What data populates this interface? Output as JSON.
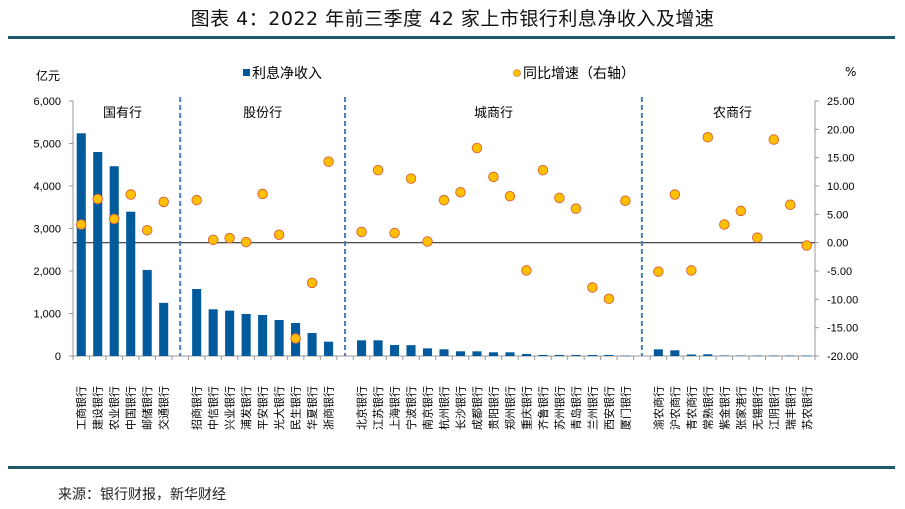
{
  "title": "图表 4：2022 年前三季度 42 家上市银行利息净收入及增速",
  "source": "来源：银行财报，新华财经",
  "chart_data": {
    "type": "bar",
    "title": "图表 4：2022 年前三季度 42 家上市银行利息净收入及增速",
    "left_unit": "亿元",
    "right_unit": "%",
    "ylim_left": [
      0,
      6000
    ],
    "ylim_right": [
      -20,
      25
    ],
    "left_ticks": [
      "0",
      "1,000",
      "2,000",
      "3,000",
      "4,000",
      "5,000",
      "6,000"
    ],
    "left_tick_values": [
      0,
      1000,
      2000,
      3000,
      4000,
      5000,
      6000
    ],
    "right_ticks": [
      "-20.00",
      "-15.00",
      "-10.00",
      "-5.00",
      "0.00",
      "5.00",
      "10.00",
      "15.00",
      "20.00",
      "25.00"
    ],
    "right_tick_values": [
      -20,
      -15,
      -10,
      -5,
      0,
      5,
      10,
      15,
      20,
      25
    ],
    "legend": [
      {
        "name": "利息净收入",
        "marker": "square",
        "color": "#005a9c"
      },
      {
        "name": "同比增速（右轴）",
        "marker": "circle",
        "color": "#ffc000"
      }
    ],
    "legend_position": "top",
    "colors": {
      "bar": "#005a9c",
      "dot_fill": "#ffc000",
      "dot_stroke": "#d9603b",
      "separator": "#4a7ebb",
      "zero_line": "#333333",
      "axis": "#999999"
    },
    "groups": [
      {
        "name": "国有行",
        "banks": [
          "工商银行",
          "建设银行",
          "农业银行",
          "中国银行",
          "邮储银行",
          "交通银行"
        ],
        "net_interest_income": [
          5240,
          4800,
          4465,
          3395,
          2025,
          1250
        ],
        "yoy_growth": [
          3.2,
          7.7,
          4.2,
          8.5,
          2.2,
          7.2
        ]
      },
      {
        "name": "股份行",
        "banks": [
          "招商银行",
          "中信银行",
          "兴业银行",
          "浦发银行",
          "平安银行",
          "光大银行",
          "民生银行",
          "华夏银行",
          "浙商银行"
        ],
        "net_interest_income": [
          1576,
          1098,
          1067,
          988,
          965,
          847,
          776,
          541,
          337
        ],
        "yoy_growth": [
          7.5,
          0.5,
          0.8,
          0.1,
          8.6,
          1.4,
          -16.9,
          -7.1,
          14.3
        ]
      },
      {
        "name": "城商行",
        "banks": [
          "北京银行",
          "江苏银行",
          "上海银行",
          "宁波银行",
          "南京银行",
          "杭州银行",
          "长沙银行",
          "成都银行",
          "贵阳银行",
          "郑州银行",
          "重庆银行",
          "齐鲁银行",
          "苏州银行",
          "青岛银行",
          "兰州银行",
          "西安银行",
          "厦门银行"
        ],
        "net_interest_income": [
          369,
          369,
          259,
          255,
          180,
          157,
          110,
          110,
          87,
          87,
          47,
          25,
          25,
          25,
          25,
          25,
          8
        ],
        "yoy_growth": [
          1.9,
          12.8,
          1.7,
          11.3,
          0.2,
          7.5,
          8.9,
          16.7,
          11.6,
          8.2,
          -4.9,
          12.8,
          7.9,
          6.0,
          -7.9,
          -9.9,
          7.4
        ]
      },
      {
        "name": "农商行",
        "banks": [
          "渝农商行",
          "沪农商行",
          "青农商行",
          "常熟银行",
          "紫金银行",
          "张家港行",
          "无锡银行",
          "江阴银行",
          "瑞丰银行",
          "苏农银行"
        ],
        "net_interest_income": [
          157,
          134,
          35,
          40,
          12,
          12,
          10,
          10,
          10,
          10
        ],
        "yoy_growth": [
          -5.1,
          8.5,
          -4.9,
          18.6,
          3.2,
          5.6,
          0.9,
          18.2,
          6.7,
          -0.5
        ]
      }
    ]
  }
}
